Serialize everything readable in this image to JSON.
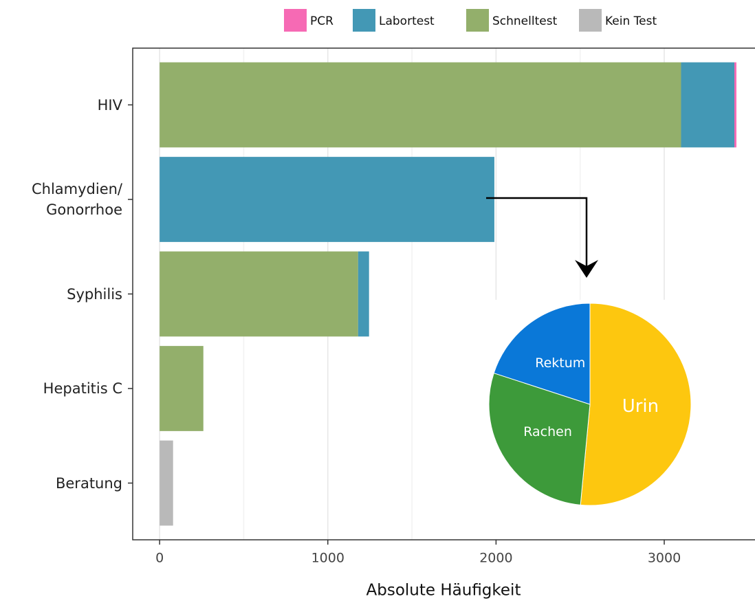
{
  "chart_data": [
    {
      "type": "hbar_stacked",
      "x_label": "Absolute Häufigkeit",
      "categories": [
        "HIV",
        "Chlamydien/\nGonorrhoe",
        "Syphilis",
        "Hepatitis C",
        "Beratung"
      ],
      "series": [
        {
          "name": "PCR",
          "color": "#f66ab4",
          "values": [
            12,
            0,
            0,
            0,
            0
          ]
        },
        {
          "name": "Labortest",
          "color": "#4398b5",
          "values": [
            317,
            1990,
            65,
            0,
            0
          ]
        },
        {
          "name": "Schnelltest",
          "color": "#93af6b",
          "values": [
            3100,
            0,
            1180,
            260,
            0
          ]
        },
        {
          "name": "Kein Test",
          "color": "#b9b9b9",
          "values": [
            0,
            0,
            0,
            0,
            80
          ]
        }
      ],
      "xlim": [
        -160,
        3560
      ],
      "xticks": [
        0,
        1000,
        2000,
        3000
      ],
      "x_minor_ticks": [
        500,
        1500,
        2500
      ],
      "grid": true,
      "legend": "top"
    },
    {
      "type": "pie",
      "categories": [
        "Urin",
        "Rachen",
        "Rektum"
      ],
      "values": [
        51.5,
        28.5,
        20
      ],
      "colors": [
        "#fdc70f",
        "#3d9a3a",
        "#0a78d8"
      ]
    }
  ]
}
